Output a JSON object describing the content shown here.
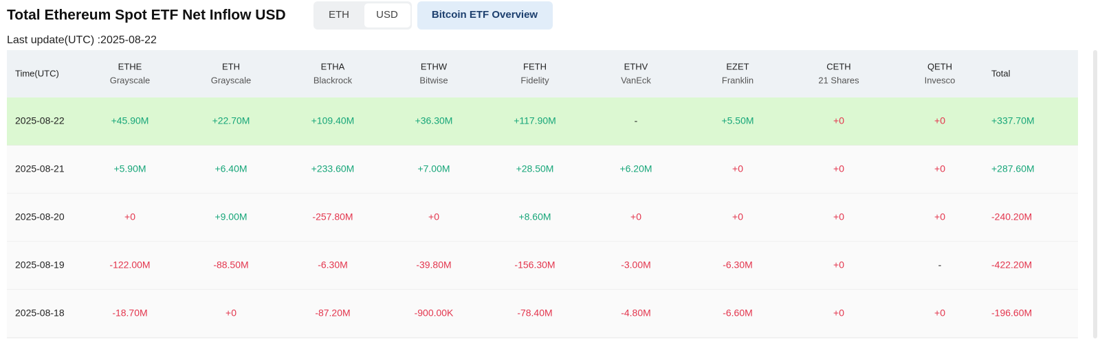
{
  "header": {
    "title": "Total Ethereum Spot ETF Net Inflow USD",
    "toggle": {
      "options": [
        "ETH",
        "USD"
      ],
      "active": "USD"
    },
    "link": "Bitcoin ETF Overview",
    "last_update": "Last update(UTC) :2025-08-22"
  },
  "table": {
    "columns": [
      {
        "label": "Time(UTC)"
      },
      {
        "ticker": "ETHE",
        "issuer": "Grayscale"
      },
      {
        "ticker": "ETH",
        "issuer": "Grayscale"
      },
      {
        "ticker": "ETHA",
        "issuer": "Blackrock"
      },
      {
        "ticker": "ETHW",
        "issuer": "Bitwise"
      },
      {
        "ticker": "FETH",
        "issuer": "Fidelity"
      },
      {
        "ticker": "ETHV",
        "issuer": "VanEck"
      },
      {
        "ticker": "EZET",
        "issuer": "Franklin"
      },
      {
        "ticker": "CETH",
        "issuer": "21 Shares"
      },
      {
        "ticker": "QETH",
        "issuer": "Invesco"
      },
      {
        "label": "Total"
      }
    ],
    "highlight_row": 0,
    "rows": [
      [
        "2025-08-22",
        "+45.90M",
        "+22.70M",
        "+109.40M",
        "+36.30M",
        "+117.90M",
        "-",
        "+5.50M",
        "+0",
        "+0",
        "+337.70M"
      ],
      [
        "2025-08-21",
        "+5.90M",
        "+6.40M",
        "+233.60M",
        "+7.00M",
        "+28.50M",
        "+6.20M",
        "+0",
        "+0",
        "+0",
        "+287.60M"
      ],
      [
        "2025-08-20",
        "+0",
        "+9.00M",
        "-257.80M",
        "+0",
        "+8.60M",
        "+0",
        "+0",
        "+0",
        "+0",
        "-240.20M"
      ],
      [
        "2025-08-19",
        "-122.00M",
        "-88.50M",
        "-6.30M",
        "-39.80M",
        "-156.30M",
        "-3.00M",
        "-6.30M",
        "+0",
        "-",
        "-422.20M"
      ],
      [
        "2025-08-18",
        "-18.70M",
        "+0",
        "-87.20M",
        "-900.00K",
        "-78.40M",
        "-4.80M",
        "-6.60M",
        "+0",
        "+0",
        "-196.60M"
      ]
    ]
  }
}
